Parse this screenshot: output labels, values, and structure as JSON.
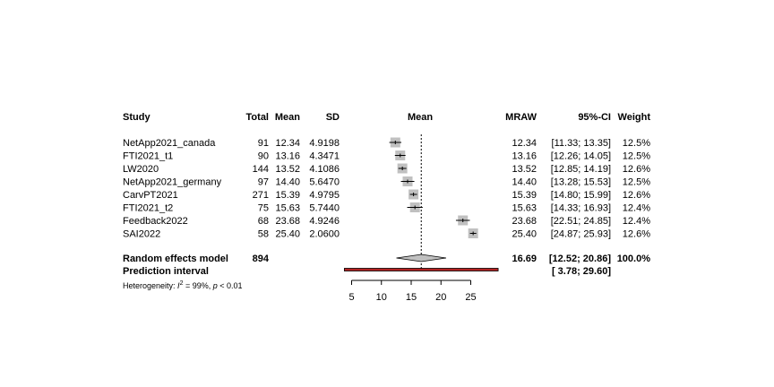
{
  "headers": {
    "study": "Study",
    "total": "Total",
    "mean": "Mean",
    "sd": "SD",
    "plot": "Mean",
    "mraw": "MRAW",
    "ci": "95%-CI",
    "weight": "Weight"
  },
  "colors": {
    "box": "#c0c0c0",
    "diamond": "#c0c0c0",
    "prediction_interval": "#b22222"
  },
  "chart_data": {
    "type": "forest",
    "xlim": [
      3,
      29
    ],
    "x_ticks": [
      5,
      10,
      15,
      20,
      25
    ],
    "x_tick_labels": [
      "5",
      "10",
      "15",
      "20",
      "25"
    ],
    "reference_line": 16.69,
    "studies": [
      {
        "name": "NetApp2021_canada",
        "total": "91",
        "mean": "12.34",
        "sd": "4.9198",
        "mraw": 12.34,
        "lower": 11.33,
        "upper": 13.35,
        "mraw_label": "12.34",
        "ci_label": "[11.33; 13.35]",
        "weight": "12.5%"
      },
      {
        "name": "FTI2021_t1",
        "total": "90",
        "mean": "13.16",
        "sd": "4.3471",
        "mraw": 13.16,
        "lower": 12.26,
        "upper": 14.05,
        "mraw_label": "13.16",
        "ci_label": "[12.26; 14.05]",
        "weight": "12.5%"
      },
      {
        "name": "LW2020",
        "total": "144",
        "mean": "13.52",
        "sd": "4.1086",
        "mraw": 13.52,
        "lower": 12.85,
        "upper": 14.19,
        "mraw_label": "13.52",
        "ci_label": "[12.85; 14.19]",
        "weight": "12.6%"
      },
      {
        "name": "NetApp2021_germany",
        "total": "97",
        "mean": "14.40",
        "sd": "5.6470",
        "mraw": 14.4,
        "lower": 13.28,
        "upper": 15.53,
        "mraw_label": "14.40",
        "ci_label": "[13.28; 15.53]",
        "weight": "12.5%"
      },
      {
        "name": "CarvPT2021",
        "total": "271",
        "mean": "15.39",
        "sd": "4.9795",
        "mraw": 15.39,
        "lower": 14.8,
        "upper": 15.99,
        "mraw_label": "15.39",
        "ci_label": "[14.80; 15.99]",
        "weight": "12.6%"
      },
      {
        "name": "FTI2021_t2",
        "total": "75",
        "mean": "15.63",
        "sd": "5.7440",
        "mraw": 15.63,
        "lower": 14.33,
        "upper": 16.93,
        "mraw_label": "15.63",
        "ci_label": "[14.33; 16.93]",
        "weight": "12.4%"
      },
      {
        "name": "Feedback2022",
        "total": "68",
        "mean": "23.68",
        "sd": "4.9246",
        "mraw": 23.68,
        "lower": 22.51,
        "upper": 24.85,
        "mraw_label": "23.68",
        "ci_label": "[22.51; 24.85]",
        "weight": "12.4%"
      },
      {
        "name": "SAI2022",
        "total": "58",
        "mean": "25.40",
        "sd": "2.0600",
        "mraw": 25.4,
        "lower": 24.87,
        "upper": 25.93,
        "mraw_label": "25.40",
        "ci_label": "[24.87; 25.93]",
        "weight": "12.6%"
      }
    ],
    "random_effects": {
      "label": "Random effects model",
      "total": "894",
      "estimate": 16.69,
      "lower": 12.52,
      "upper": 20.86,
      "mraw_label": "16.69",
      "ci_label": "[12.52; 20.86]",
      "weight": "100.0%"
    },
    "prediction_interval": {
      "label": "Prediction interval",
      "lower": 3.78,
      "upper": 29.6,
      "ci_label": "[ 3.78; 29.60]"
    },
    "heterogeneity": {
      "prefix": "Heterogeneity: ",
      "i2_symbol": "I",
      "i2_sup": "2",
      "i2_value": " = 99%, ",
      "p_symbol": "p",
      "p_value": " < 0.01"
    }
  }
}
